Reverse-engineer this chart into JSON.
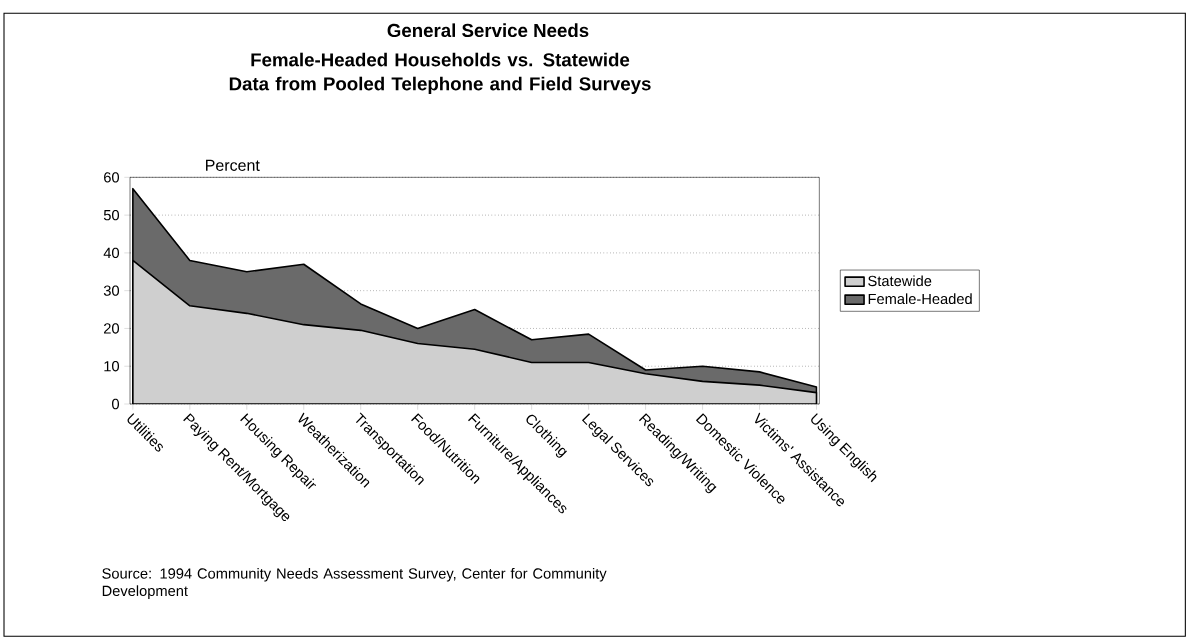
{
  "chart_data": {
    "type": "area",
    "title": "General Service Needs",
    "subtitle": "Female-Headed Households vs. Statewide Data from Pooled Telephone and Field Surveys",
    "ylabel": "Percent",
    "categories": [
      "Utilities",
      "Paying Rent/Mortgage",
      "Housing Repair",
      "Weatherization",
      "Transportation",
      "Food/Nutrition",
      "Furniture/Appliances",
      "Clothing",
      "Legal Services",
      "Reading/Writing",
      "Domestic Violence",
      "Victims' Assistance",
      "Using English"
    ],
    "series": [
      {
        "name": "Statewide",
        "color": "#cfcfcf",
        "values": [
          38,
          26,
          24,
          21,
          19.5,
          16,
          14.5,
          11,
          11,
          8,
          6,
          5,
          3
        ]
      },
      {
        "name": "Female-Headed",
        "color": "#6a6a6a",
        "values": [
          57,
          38,
          35,
          37,
          26.5,
          20,
          25,
          17,
          18.5,
          9,
          10,
          8.5,
          4.5
        ]
      }
    ],
    "ylim": [
      0,
      60
    ],
    "yticks": [
      0,
      10,
      20,
      30,
      40,
      50,
      60
    ],
    "grid": "y",
    "legend": "right",
    "annotations": [
      "Source: 1994 Community Needs Assessment Survey, Center for Community Development"
    ]
  }
}
